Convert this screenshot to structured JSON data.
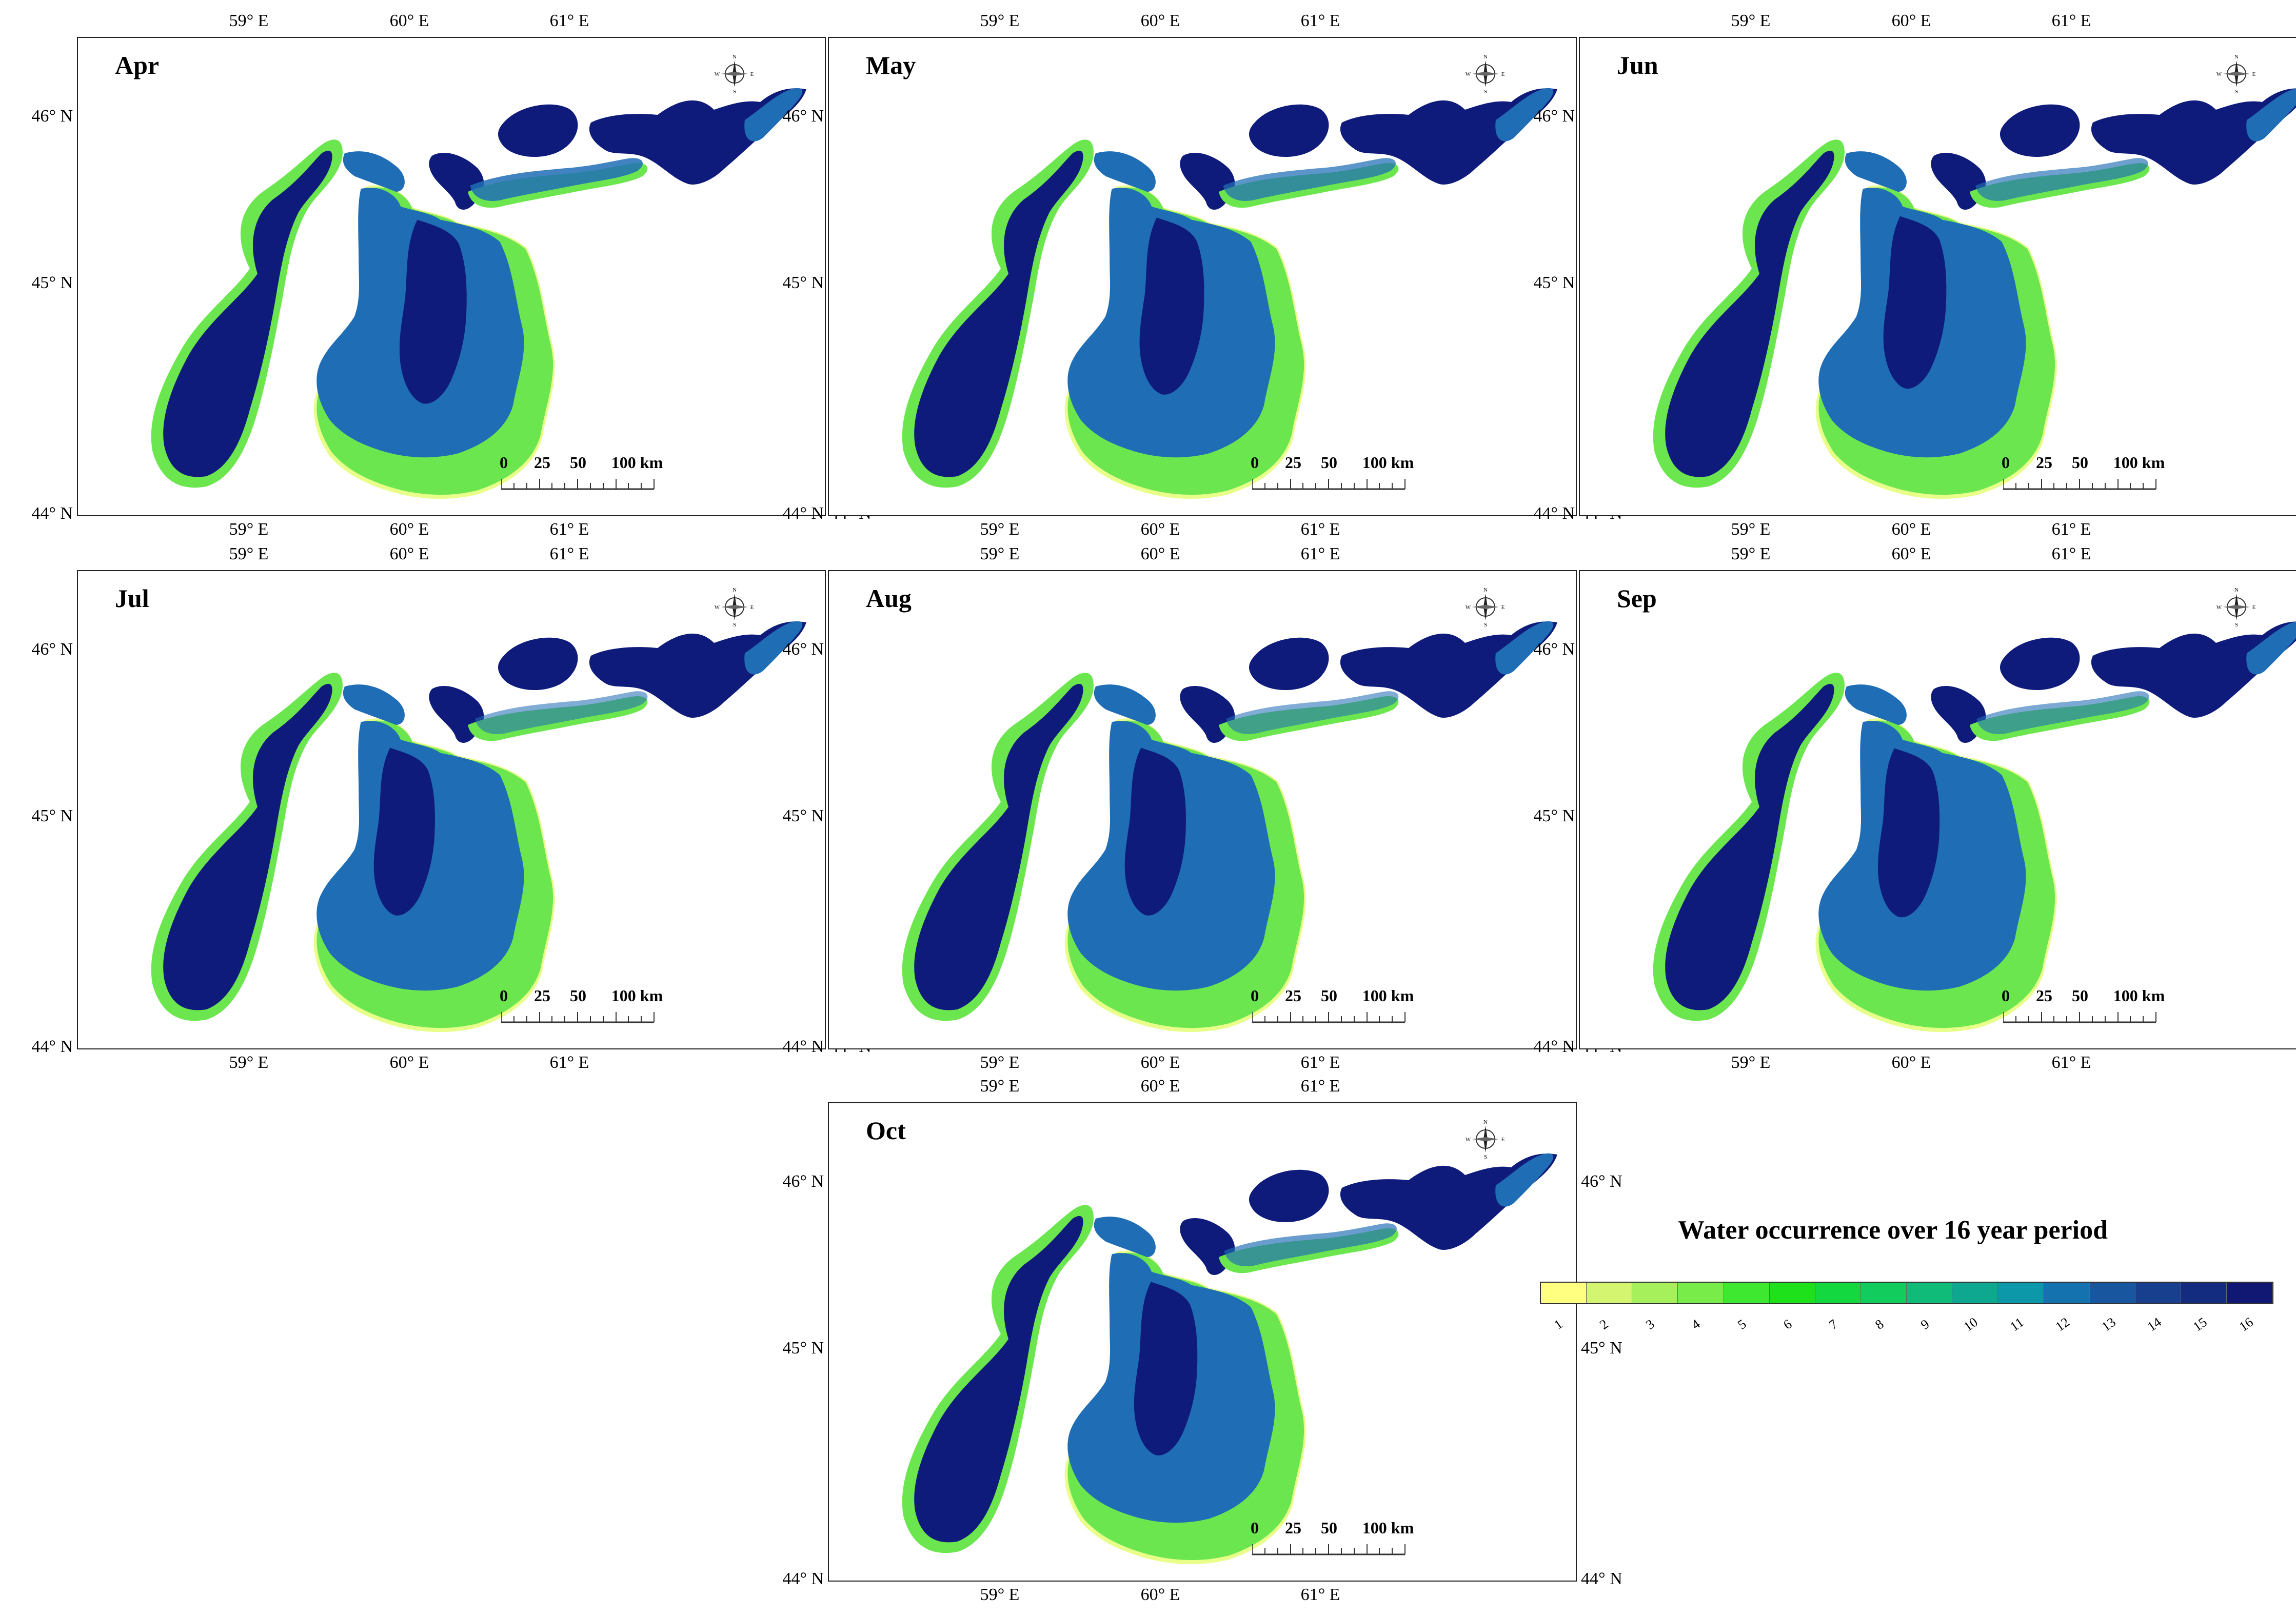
{
  "panels": [
    {
      "month": "Apr",
      "level": 0.25
    },
    {
      "month": "May",
      "level": 0.45
    },
    {
      "month": "Jun",
      "level": 0.58
    },
    {
      "month": "Jul",
      "level": 0.72
    },
    {
      "month": "Aug",
      "level": 0.72
    },
    {
      "month": "Sep",
      "level": 0.68
    },
    {
      "month": "Oct",
      "level": 0.55
    }
  ],
  "lon_labels": [
    "59° E",
    "60° E",
    "61° E"
  ],
  "lat_labels": [
    "46° N",
    "45° N",
    "44° N"
  ],
  "compass_labels": {
    "n": "N",
    "s": "S",
    "e": "E",
    "w": "W"
  },
  "scale_labels": [
    "0",
    "25",
    "50",
    "100 km"
  ],
  "legend": {
    "title": "Water occurrence over 16 year period",
    "classes": [
      "1",
      "2",
      "3",
      "4",
      "5",
      "6",
      "7",
      "8",
      "9",
      "10",
      "11",
      "12",
      "13",
      "14",
      "15",
      "16"
    ],
    "colors": [
      "#ffff80",
      "#d4f570",
      "#a6f05c",
      "#78ec48",
      "#3fe830",
      "#1ee11c",
      "#14d840",
      "#12cc5e",
      "#10bb7a",
      "#0ea890",
      "#0c98a8",
      "#1472ae",
      "#1856a0",
      "#183e8e",
      "#142c80",
      "#101874"
    ]
  },
  "colors": {
    "deep": "#0f1b7a",
    "mid": "#1f6db5",
    "shallow": "#6ce64e",
    "fringe": "#e8ff8a"
  }
}
